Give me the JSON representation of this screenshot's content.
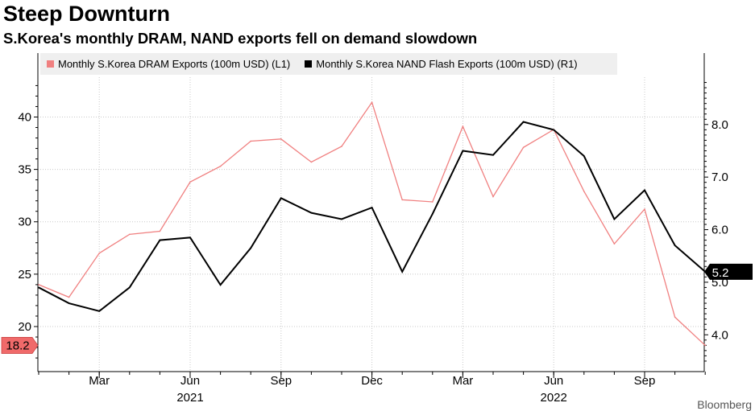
{
  "header": {
    "title": "Steep Downturn",
    "subtitle": "S.Korea's monthly DRAM, NAND exports fell on demand slowdown"
  },
  "colors": {
    "dram": "#f08080",
    "nand": "#000000",
    "dram_label_bg": "#f06a6a",
    "grid": "#c8c8c8"
  },
  "chart_data": {
    "type": "line",
    "title": "Steep Downturn",
    "subtitle": "S.Korea's monthly DRAM, NAND exports fell on demand slowdown",
    "x": [
      "2021-01",
      "2021-02",
      "2021-03",
      "2021-04",
      "2021-05",
      "2021-06",
      "2021-07",
      "2021-08",
      "2021-09",
      "2021-10",
      "2021-11",
      "2021-12",
      "2022-01",
      "2022-02",
      "2022-03",
      "2022-04",
      "2022-05",
      "2022-06",
      "2022-07",
      "2022-08",
      "2022-09",
      "2022-10",
      "2022-11"
    ],
    "x_tick_labels": [
      "Mar",
      "Jun",
      "Sep",
      "Dec",
      "Mar",
      "Jun",
      "Sep"
    ],
    "x_year_labels": [
      "2021",
      "2022"
    ],
    "series": [
      {
        "name": "Monthly S.Korea DRAM Exports (100m USD)  (L1)",
        "axis": "left",
        "values": [
          24.0,
          22.8,
          27.0,
          28.8,
          29.1,
          33.8,
          35.3,
          37.7,
          37.9,
          35.7,
          37.2,
          41.4,
          32.1,
          31.9,
          39.1,
          32.4,
          37.1,
          38.8,
          32.9,
          27.9,
          31.2,
          20.9,
          18.2
        ],
        "last_value_label": "18.2"
      },
      {
        "name": "Monthly S.Korea NAND Flash Exports (100m USD)  (R1)",
        "axis": "right",
        "values": [
          4.9,
          4.6,
          4.45,
          4.9,
          5.8,
          5.85,
          4.95,
          5.65,
          6.6,
          6.32,
          6.2,
          6.42,
          5.2,
          6.3,
          7.5,
          7.42,
          8.05,
          7.9,
          7.4,
          6.2,
          6.75,
          5.7,
          5.2
        ],
        "last_value_label": "5.2"
      }
    ],
    "y_left": {
      "ticks": [
        20,
        25,
        30,
        35,
        40
      ],
      "ylim": [
        15.7,
        43.8
      ]
    },
    "y_right": {
      "ticks": [
        "4.0",
        "5.0",
        "6.0",
        "7.0",
        "8.0"
      ],
      "ylim": [
        3.3,
        8.9
      ]
    },
    "grid": true,
    "legend_position": "top-left"
  },
  "footer": {
    "credit": "Bloomberg"
  }
}
